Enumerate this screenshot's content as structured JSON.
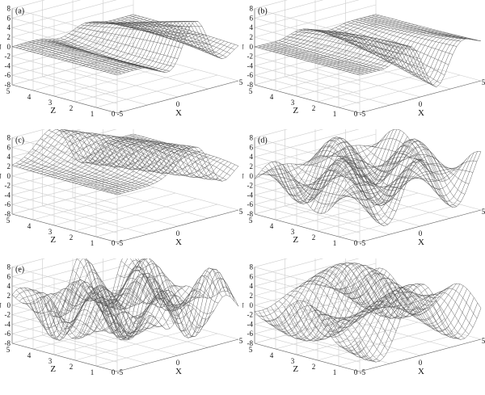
{
  "chart_data": [
    {
      "type": "surface",
      "panel_label": "(a)",
      "xlabel": "X",
      "ylabel": "Z",
      "zlabel": "U",
      "x_ticks": [
        "-5",
        "0",
        "5"
      ],
      "y_ticks": [
        "0",
        "1",
        "2",
        "3",
        "4",
        "5"
      ],
      "z_ticks": [
        "-8",
        "-6",
        "-4",
        "-2",
        "0",
        "2",
        "4",
        "6",
        "8"
      ],
      "xlim": [
        -5,
        5
      ],
      "ylim": [
        0,
        5
      ],
      "zlim": [
        -8,
        8
      ]
    },
    {
      "type": "surface",
      "panel_label": "(b)",
      "xlabel": "X",
      "ylabel": "Z",
      "zlabel": "U",
      "x_ticks": [
        "-5",
        "0",
        "5"
      ],
      "y_ticks": [
        "0",
        "1",
        "2",
        "3",
        "4",
        "5"
      ],
      "z_ticks": [
        "-8",
        "-6",
        "-4",
        "-2",
        "0",
        "2",
        "4",
        "6",
        "8"
      ],
      "xlim": [
        -5,
        5
      ],
      "ylim": [
        0,
        5
      ],
      "zlim": [
        -8,
        8
      ]
    },
    {
      "type": "surface",
      "panel_label": "(c)",
      "xlabel": "X",
      "ylabel": "Z",
      "zlabel": "U",
      "x_ticks": [
        "-5",
        "0",
        "5"
      ],
      "y_ticks": [
        "0",
        "1",
        "2",
        "3",
        "4",
        "5"
      ],
      "z_ticks": [
        "-8",
        "-6",
        "-4",
        "-2",
        "0",
        "2",
        "4",
        "6",
        "8"
      ],
      "xlim": [
        -5,
        5
      ],
      "ylim": [
        0,
        5
      ],
      "zlim": [
        -8,
        8
      ]
    },
    {
      "type": "surface",
      "panel_label": "(d)",
      "xlabel": "X",
      "ylabel": "Z",
      "zlabel": "U",
      "x_ticks": [
        "-5",
        "0",
        "5"
      ],
      "y_ticks": [
        "0",
        "1",
        "2",
        "3",
        "4",
        "5"
      ],
      "z_ticks": [
        "-8",
        "-6",
        "-4",
        "-2",
        "0",
        "2",
        "4",
        "6",
        "8"
      ],
      "xlim": [
        -5,
        5
      ],
      "ylim": [
        0,
        5
      ],
      "zlim": [
        -8,
        8
      ]
    },
    {
      "type": "surface",
      "panel_label": "(e)",
      "xlabel": "X",
      "ylabel": "Z",
      "zlabel": "U",
      "x_ticks": [
        "-5",
        "0",
        "5"
      ],
      "y_ticks": [
        "0",
        "1",
        "2",
        "3",
        "4",
        "5"
      ],
      "z_ticks": [
        "-8",
        "-6",
        "-4",
        "-2",
        "0",
        "2",
        "4",
        "6",
        "8"
      ],
      "xlim": [
        -5,
        5
      ],
      "ylim": [
        0,
        5
      ],
      "zlim": [
        -8,
        8
      ]
    },
    {
      "type": "surface",
      "panel_label": "",
      "xlabel": "X",
      "ylabel": "Z",
      "zlabel": "U",
      "x_ticks": [
        "-5",
        "0",
        "5"
      ],
      "y_ticks": [
        "0",
        "1",
        "2",
        "3",
        "4",
        "5"
      ],
      "z_ticks": [
        "-8",
        "-6",
        "-4",
        "-2",
        "0",
        "2",
        "4",
        "6",
        "8"
      ],
      "xlim": [
        -5,
        5
      ],
      "ylim": [
        0,
        5
      ],
      "zlim": [
        -8,
        8
      ]
    }
  ]
}
